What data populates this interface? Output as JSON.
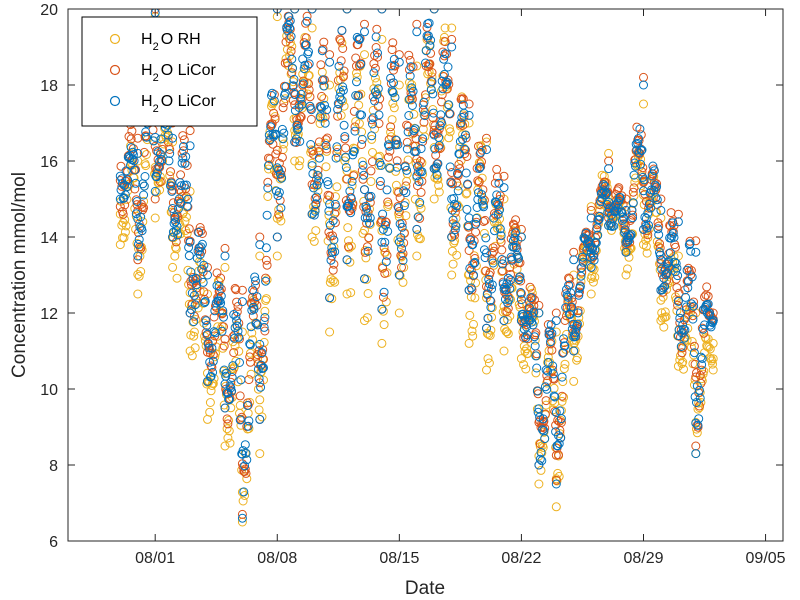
{
  "chart_data": {
    "type": "scatter",
    "xlabel": "Date",
    "ylabel": "Concentration mmol/mol",
    "x_ticks": [
      "08/01",
      "08/08",
      "08/15",
      "08/22",
      "08/29",
      "09/05"
    ],
    "y_ticks": [
      "6",
      "8",
      "10",
      "12",
      "14",
      "16",
      "18",
      "20"
    ],
    "xlim": [
      "07/27",
      "09/06"
    ],
    "ylim": [
      6,
      20
    ],
    "grid": false,
    "legend_position": "top-left",
    "marker": "open-circle",
    "series": [
      {
        "name_parts": [
          "H",
          "2",
          "O RH"
        ],
        "color": "#EDB120",
        "x": [
          "07/30",
          "07/31",
          "08/01",
          "08/02",
          "08/03",
          "08/04",
          "08/05",
          "08/06",
          "08/07",
          "08/08",
          "08/09",
          "08/10",
          "08/11",
          "08/12",
          "08/13",
          "08/14",
          "08/15",
          "08/16",
          "08/17",
          "08/18",
          "08/19",
          "08/20",
          "08/21",
          "08/22",
          "08/23",
          "08/24",
          "08/25",
          "08/26",
          "08/27",
          "08/28",
          "08/29",
          "08/30",
          "08/31",
          "09/01",
          "09/02"
        ],
        "y_low": [
          13.8,
          12.5,
          14.5,
          13.2,
          11.0,
          9.2,
          8.5,
          6.5,
          8.3,
          13.5,
          16.0,
          14.0,
          11.5,
          12.5,
          11.8,
          11.2,
          12.0,
          13.5,
          15.0,
          13.0,
          11.2,
          10.5,
          11.0,
          10.8,
          7.5,
          6.9,
          10.2,
          12.5,
          14.3,
          13.0,
          13.8,
          11.8,
          10.6,
          8.3,
          10.5
        ],
        "y_high": [
          17.5,
          16.0,
          19.8,
          16.5,
          15.2,
          12.5,
          13.2,
          11.5,
          13.5,
          19.8,
          20.0,
          19.5,
          18.0,
          20.0,
          18.8,
          19.2,
          18.0,
          18.5,
          20.0,
          19.5,
          17.0,
          16.5,
          15.0,
          14.0,
          12.0,
          11.5,
          13.0,
          14.8,
          16.2,
          14.8,
          17.5,
          14.5,
          13.5,
          12.0,
          11.2
        ]
      },
      {
        "name_parts": [
          "H",
          "2",
          "O LiCor"
        ],
        "color": "#D95319",
        "x": [
          "07/30",
          "07/31",
          "08/01",
          "08/02",
          "08/03",
          "08/04",
          "08/05",
          "08/06",
          "08/07",
          "08/08",
          "08/09",
          "08/10",
          "08/11",
          "08/12",
          "08/13",
          "08/14",
          "08/15",
          "08/16",
          "08/17",
          "08/18",
          "08/19",
          "08/20",
          "08/21",
          "08/22",
          "08/23",
          "08/24",
          "08/25",
          "08/26",
          "08/27",
          "08/28",
          "08/29",
          "08/30",
          "08/31",
          "09/01",
          "09/02"
        ],
        "y_low": [
          14.8,
          13.4,
          15.0,
          14.0,
          12.0,
          10.2,
          9.5,
          6.7,
          9.2,
          14.0,
          16.5,
          14.6,
          12.4,
          13.4,
          12.9,
          12.1,
          13.0,
          14.2,
          15.8,
          14.0,
          12.6,
          11.6,
          11.8,
          11.8,
          8.0,
          7.6,
          11.0,
          13.2,
          14.5,
          13.6,
          14.2,
          12.6,
          11.4,
          8.5,
          11.8
        ],
        "y_high": [
          17.8,
          16.6,
          20.0,
          17.0,
          16.8,
          13.2,
          13.7,
          12.6,
          14.0,
          20.0,
          20.0,
          20.0,
          18.8,
          20.0,
          19.6,
          20.0,
          18.8,
          19.6,
          20.0,
          19.2,
          17.5,
          16.6,
          15.6,
          14.2,
          12.2,
          12.0,
          13.6,
          14.7,
          16.0,
          15.0,
          18.2,
          15.0,
          14.6,
          13.9,
          12.0
        ]
      },
      {
        "name_parts": [
          "H",
          "2",
          "O LiCor"
        ],
        "color": "#0072BD",
        "x": [
          "07/30",
          "07/31",
          "08/01",
          "08/02",
          "08/03",
          "08/04",
          "08/05",
          "08/06",
          "08/07",
          "08/08",
          "08/09",
          "08/10",
          "08/11",
          "08/12",
          "08/13",
          "08/14",
          "08/15",
          "08/16",
          "08/17",
          "08/18",
          "08/19",
          "08/20",
          "08/21",
          "08/22",
          "08/23",
          "08/24",
          "08/25",
          "08/26",
          "08/27",
          "08/28",
          "08/29",
          "08/30",
          "08/31",
          "09/01",
          "09/02"
        ],
        "y_low": [
          15.0,
          13.5,
          15.2,
          14.0,
          12.0,
          10.2,
          9.5,
          6.6,
          9.2,
          14.0,
          16.5,
          14.6,
          12.4,
          13.4,
          12.9,
          12.1,
          13.0,
          14.2,
          15.8,
          14.0,
          12.6,
          11.6,
          11.8,
          11.8,
          8.0,
          7.5,
          11.0,
          13.2,
          14.3,
          13.6,
          14.2,
          12.6,
          11.4,
          8.3,
          11.8
        ],
        "y_high": [
          17.5,
          16.2,
          19.9,
          16.6,
          16.4,
          13.0,
          13.5,
          12.3,
          13.8,
          20.0,
          20.0,
          20.0,
          18.6,
          20.0,
          19.4,
          20.0,
          18.6,
          19.4,
          20.0,
          19.0,
          17.2,
          16.3,
          15.3,
          14.0,
          12.0,
          11.8,
          13.4,
          14.5,
          15.8,
          14.7,
          18.0,
          14.7,
          14.4,
          13.6,
          11.8
        ]
      }
    ]
  }
}
